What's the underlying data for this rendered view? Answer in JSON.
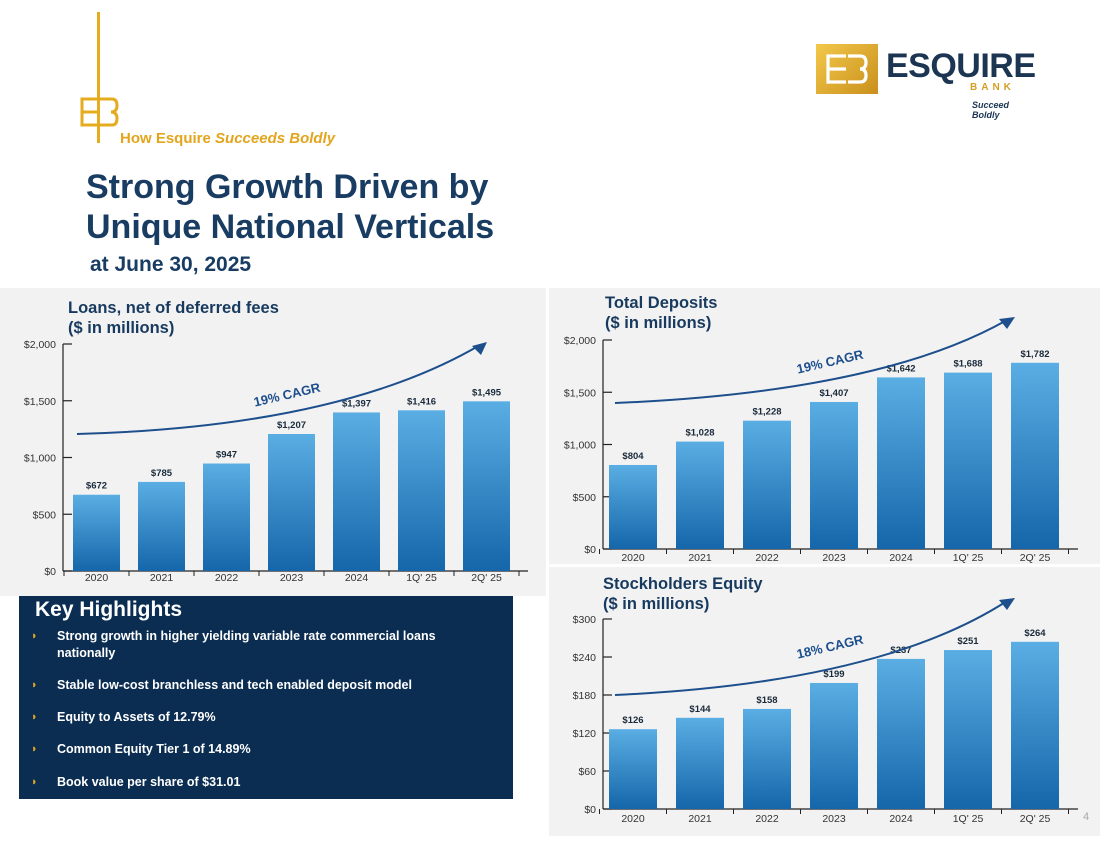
{
  "header": {
    "subhead_prefix": "How Esquire ",
    "subhead_emphasis": "Succeeds Boldly",
    "title_line1": "Strong Growth Driven by",
    "title_line2": "Unique National Verticals",
    "as_of": "at June 30, 2025"
  },
  "logo": {
    "name": "ESQUIRE",
    "sub": "BANK",
    "tagline": "Succeed Boldly"
  },
  "highlights": {
    "title": "Key Highlights",
    "items": [
      "Strong growth in higher yielding variable rate commercial loans nationally",
      "Stable low-cost branchless and tech enabled deposit model",
      "Equity to Assets of 12.79%",
      "Common Equity Tier 1 of 14.89%",
      "Book value per share of $31.01"
    ]
  },
  "page_number": "4",
  "colors": {
    "bar_top": "#5aaee3",
    "bar_bottom": "#1566aa",
    "arrow": "#1d4f8c",
    "gold": "#e6ac1f",
    "navy": "#183c62",
    "panel_bg": "#f2f2f3"
  },
  "chart_data": [
    {
      "id": "loans",
      "type": "bar",
      "title_line1": "Loans, net of deferred fees",
      "title_line2": "($ in millions)",
      "categories": [
        "2020",
        "2021",
        "2022",
        "2023",
        "2024",
        "1Q' 25",
        "2Q' 25"
      ],
      "values": [
        672,
        785,
        947,
        1207,
        1397,
        1416,
        1495
      ],
      "value_labels": [
        "$672",
        "$785",
        "$947",
        "$1,207",
        "$1,397",
        "$1,416",
        "$1,495"
      ],
      "ylim": [
        0,
        2000
      ],
      "yticks": [
        0,
        500,
        1000,
        1500,
        2000
      ],
      "ytick_labels": [
        "$0",
        "$500",
        "$1,000",
        "$1,500",
        "$2,000"
      ],
      "annotation": "19% CAGR"
    },
    {
      "id": "deposits",
      "type": "bar",
      "title_line1": "Total Deposits",
      "title_line2": "($ in millions)",
      "categories": [
        "2020",
        "2021",
        "2022",
        "2023",
        "2024",
        "1Q' 25",
        "2Q' 25"
      ],
      "values": [
        804,
        1028,
        1228,
        1407,
        1642,
        1688,
        1782
      ],
      "value_labels": [
        "$804",
        "$1,028",
        "$1,228",
        "$1,407",
        "$1,642",
        "$1,688",
        "$1,782"
      ],
      "ylim": [
        0,
        2000
      ],
      "yticks": [
        0,
        500,
        1000,
        1500,
        2000
      ],
      "ytick_labels": [
        "$0",
        "$500",
        "$1,000",
        "$1,500",
        "$2,000"
      ],
      "annotation": "19% CAGR"
    },
    {
      "id": "equity",
      "type": "bar",
      "title_line1": "Stockholders Equity",
      "title_line2": "($ in millions)",
      "categories": [
        "2020",
        "2021",
        "2022",
        "2023",
        "2024",
        "1Q' 25",
        "2Q' 25"
      ],
      "values": [
        126,
        144,
        158,
        199,
        237,
        251,
        264
      ],
      "value_labels": [
        "$126",
        "$144",
        "$158",
        "$199",
        "$237",
        "$251",
        "$264"
      ],
      "ylim": [
        0,
        300
      ],
      "yticks": [
        0,
        60,
        120,
        180,
        240,
        300
      ],
      "ytick_labels": [
        "$0",
        "$60",
        "$120",
        "$180",
        "$240",
        "$300"
      ],
      "annotation": "18% CAGR"
    }
  ]
}
